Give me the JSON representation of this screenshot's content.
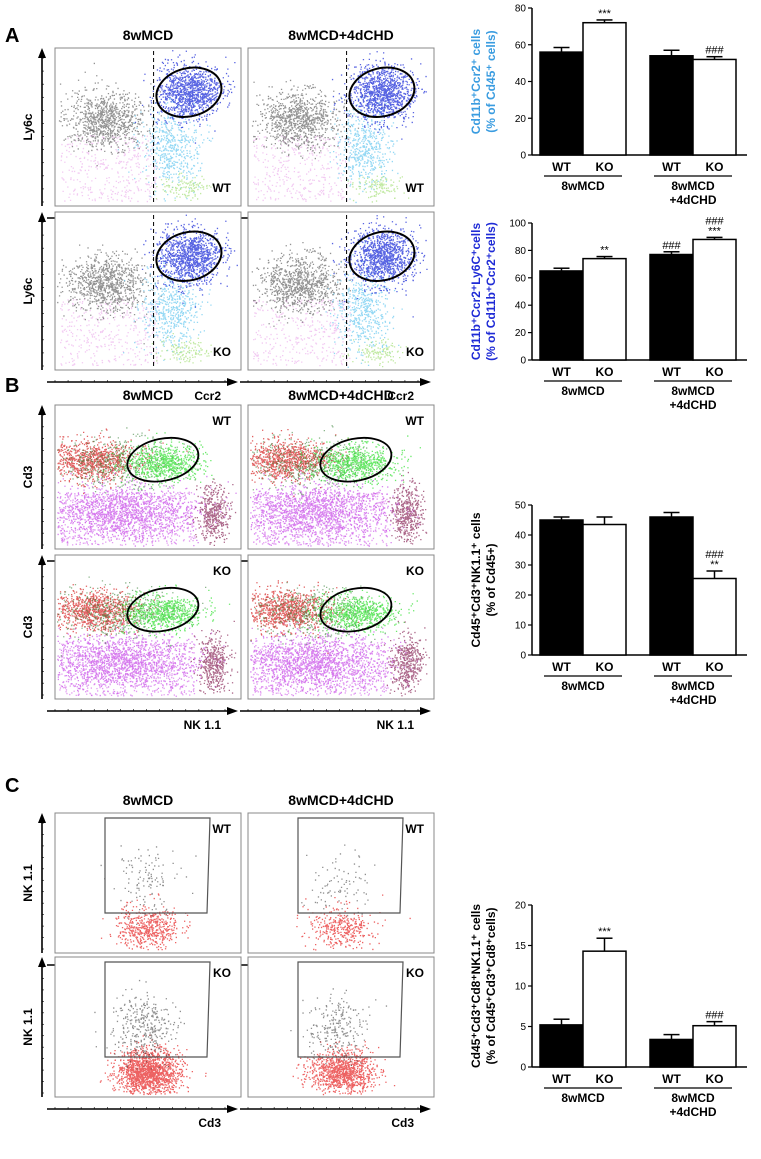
{
  "panels": [
    {
      "id": "A",
      "letter": "A",
      "conditions": [
        "8wMCD",
        "8wMCD+4dCHD"
      ],
      "rows": [
        {
          "genotype": "WT",
          "y_label": "Ly6c",
          "x_label": ""
        },
        {
          "genotype": "KO",
          "y_label": "Ly6c",
          "x_label": "Ccr2"
        }
      ]
    },
    {
      "id": "B",
      "letter": "B",
      "conditions": [
        "8wMCD",
        "8wMCD+4dCHD"
      ],
      "rows": [
        {
          "genotype": "WT",
          "y_label": "Cd3",
          "x_label": ""
        },
        {
          "genotype": "KO",
          "y_label": "Cd3",
          "x_label": "NK 1.1"
        }
      ]
    },
    {
      "id": "C",
      "letter": "C",
      "conditions": [
        "8wMCD",
        "8wMCD+4dCHD"
      ],
      "rows": [
        {
          "genotype": "WT",
          "y_label": "NK 1.1",
          "x_label": ""
        },
        {
          "genotype": "KO",
          "y_label": "NK 1.1",
          "x_label": "Cd3"
        }
      ]
    }
  ],
  "chart_data": [
    {
      "id": "A1",
      "type": "bar",
      "ylabel_line1": "Cd11b⁺Ccr2⁺ cells",
      "ylabel_line2": "(% of Cd45⁺ cells)",
      "ylabel_color": "#3a9ce0",
      "ylim": [
        0,
        80
      ],
      "yticks": [
        0,
        20,
        40,
        60,
        80
      ],
      "groups": [
        "8wMCD",
        "8wMCD\n+4dCHD"
      ],
      "genotypes": [
        "WT",
        "KO"
      ],
      "values": [
        56,
        72,
        54,
        52
      ],
      "errors": [
        2.5,
        1.5,
        3,
        1.5
      ],
      "annotations": [
        [
          "",
          "***"
        ],
        [
          "",
          "###"
        ]
      ]
    },
    {
      "id": "A2",
      "type": "bar",
      "ylabel_line1": "Cd11b⁺Ccr2⁺Ly6C⁺cells",
      "ylabel_line2": "(% of Cd11b⁺Ccr2⁺cells)",
      "ylabel_color": "#1f2bd6",
      "ylim": [
        0,
        100
      ],
      "yticks": [
        0,
        20,
        40,
        60,
        80,
        100
      ],
      "groups": [
        "8wMCD",
        "8wMCD\n+4dCHD"
      ],
      "genotypes": [
        "WT",
        "KO"
      ],
      "values": [
        65,
        74,
        77,
        88
      ],
      "errors": [
        2,
        1.5,
        2,
        1.5
      ],
      "annotations": [
        [
          "",
          "**"
        ],
        [
          "###",
          "###\n***"
        ]
      ]
    },
    {
      "id": "B1",
      "type": "bar",
      "ylabel_line1": "Cd45⁺Cd3⁺NK1.1⁺ cells",
      "ylabel_line2": "(% of Cd45+)",
      "ylabel_color": "#000000",
      "ylim": [
        0,
        50
      ],
      "yticks": [
        0,
        10,
        20,
        30,
        40,
        50
      ],
      "groups": [
        "8wMCD",
        "8wMCD\n+4dCHD"
      ],
      "genotypes": [
        "WT",
        "KO"
      ],
      "values": [
        45,
        43.5,
        46,
        25.5
      ],
      "errors": [
        1,
        2.5,
        1.5,
        2.5
      ],
      "annotations": [
        [
          "",
          ""
        ],
        [
          "",
          "###\n**"
        ]
      ]
    },
    {
      "id": "C1",
      "type": "bar",
      "ylabel_line1": "Cd45⁺Cd3⁺Cd8⁺NK1.1⁺ cells",
      "ylabel_line2": "(% of Cd45⁺Cd3⁺Cd8⁺cells)",
      "ylabel_color": "#000000",
      "ylim": [
        0,
        20
      ],
      "yticks": [
        0,
        5,
        10,
        15,
        20
      ],
      "groups": [
        "8wMCD",
        "8wMCD\n+4dCHD"
      ],
      "genotypes": [
        "WT",
        "KO"
      ],
      "values": [
        5.2,
        14.3,
        3.4,
        5.1
      ],
      "errors": [
        0.7,
        1.6,
        0.6,
        0.5
      ],
      "annotations": [
        [
          "",
          "***"
        ],
        [
          "",
          "###"
        ]
      ]
    }
  ]
}
